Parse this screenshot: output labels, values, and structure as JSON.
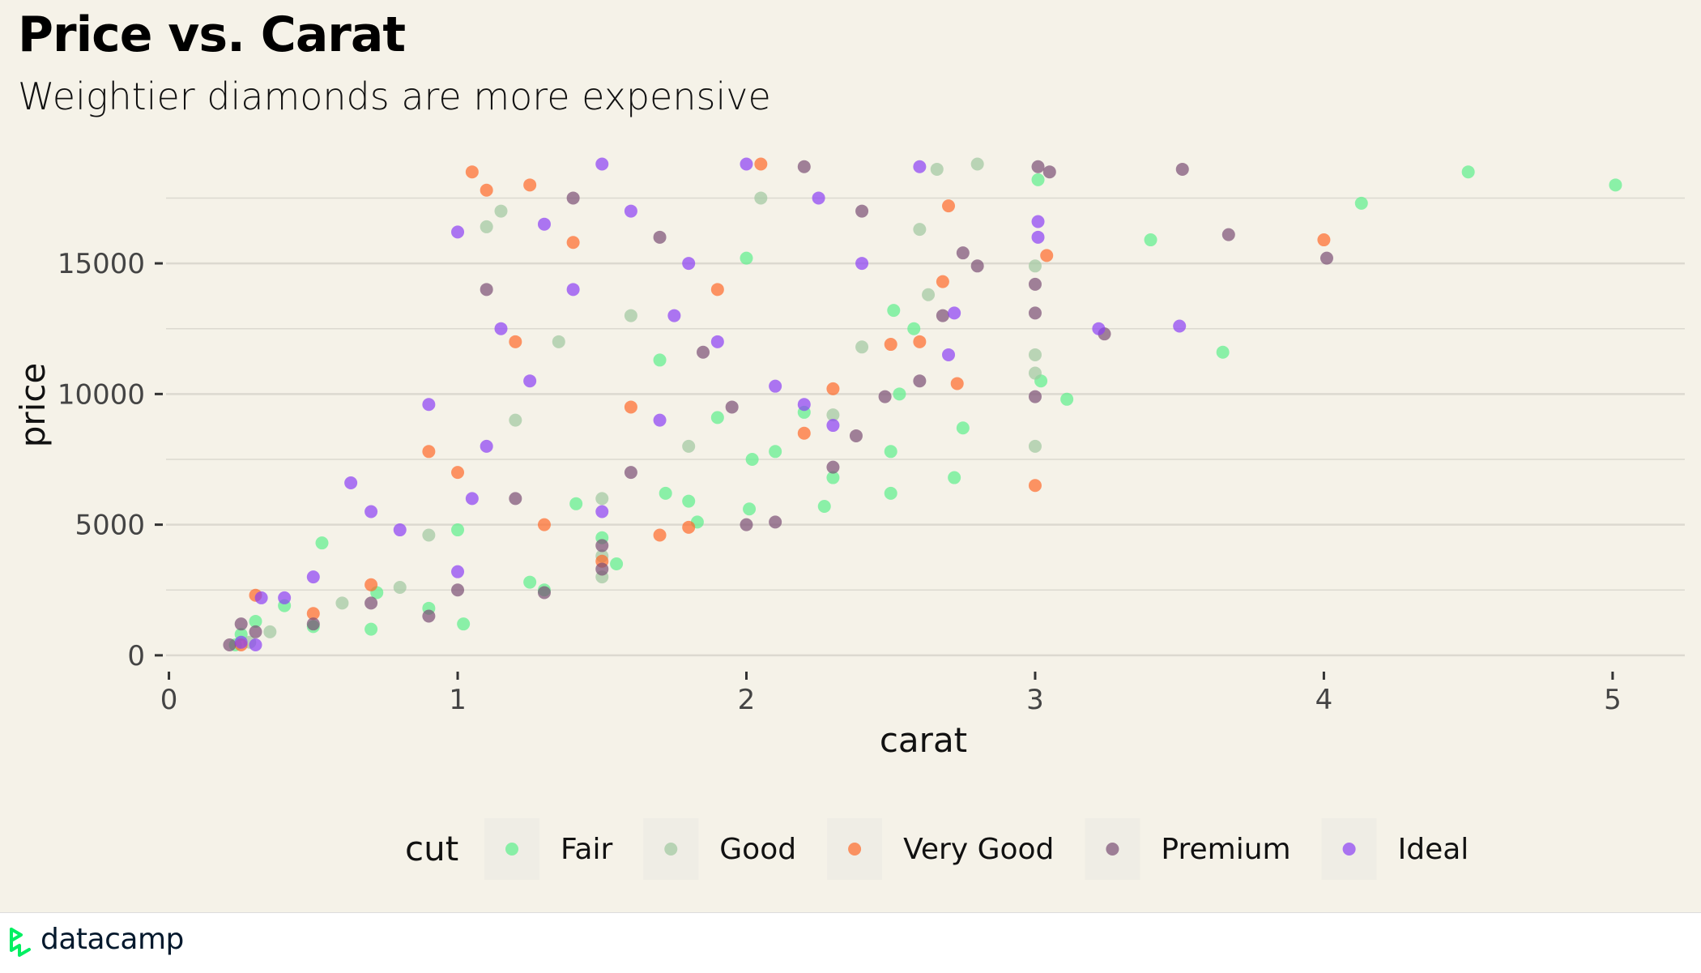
{
  "header": {
    "title": "Price vs. Carat",
    "subtitle": "Weightier diamonds are more expensive"
  },
  "footer": {
    "logo_text": "datacamp",
    "logo_icon": "datacamp-logo-icon"
  },
  "colors": {
    "background": "#f5f2e8",
    "grid": "#dcd9d0",
    "Fair": "#5cf08c",
    "Good": "#a0c8a0",
    "Very Good": "#ff6a2a",
    "Premium": "#7a4f75",
    "Ideal": "#8b3ff5",
    "logo": "#03ef62"
  },
  "chart_data": {
    "type": "scatter",
    "title": "Price vs. Carat",
    "subtitle": "Weightier diamonds are more expensive",
    "xlabel": "carat",
    "ylabel": "price",
    "xlim": [
      -0.01,
      5.25
    ],
    "ylim": [
      -500,
      19250
    ],
    "xticks": [
      0,
      1,
      2,
      3,
      4,
      5
    ],
    "yticks": [
      0,
      5000,
      10000,
      15000
    ],
    "grid": true,
    "legend": {
      "title": "cut",
      "position": "bottom",
      "entries": [
        "Fair",
        "Good",
        "Very Good",
        "Premium",
        "Ideal"
      ]
    },
    "series": [
      {
        "name": "Fair",
        "points": [
          [
            5.01,
            18000
          ],
          [
            4.5,
            18500
          ],
          [
            4.13,
            17300
          ],
          [
            3.4,
            15900
          ],
          [
            3.65,
            11600
          ],
          [
            3.11,
            9800
          ],
          [
            3.01,
            18200
          ],
          [
            3.02,
            10500
          ],
          [
            2.5,
            6200
          ],
          [
            2.72,
            6800
          ],
          [
            2.75,
            8700
          ],
          [
            2.58,
            12500
          ],
          [
            2.53,
            10000
          ],
          [
            2.51,
            13200
          ],
          [
            2.5,
            7800
          ],
          [
            2.27,
            5700
          ],
          [
            2.3,
            6800
          ],
          [
            2.1,
            7800
          ],
          [
            2.02,
            7500
          ],
          [
            2.01,
            5600
          ],
          [
            2.0,
            15200
          ],
          [
            1.83,
            5100
          ],
          [
            1.8,
            5900
          ],
          [
            1.72,
            6200
          ],
          [
            1.55,
            3500
          ],
          [
            1.5,
            4500
          ],
          [
            1.41,
            5800
          ],
          [
            1.3,
            2500
          ],
          [
            1.25,
            2800
          ],
          [
            1.0,
            4800
          ],
          [
            1.02,
            1200
          ],
          [
            0.9,
            1800
          ],
          [
            0.72,
            2400
          ],
          [
            0.7,
            1000
          ],
          [
            0.53,
            4300
          ],
          [
            0.5,
            1100
          ],
          [
            0.4,
            1900
          ],
          [
            0.3,
            1300
          ],
          [
            0.25,
            800
          ],
          [
            0.23,
            400
          ],
          [
            1.7,
            11300
          ],
          [
            1.9,
            9100
          ],
          [
            2.2,
            9300
          ]
        ]
      },
      {
        "name": "Good",
        "points": [
          [
            2.8,
            18800
          ],
          [
            2.66,
            18600
          ],
          [
            3.0,
            11500
          ],
          [
            3.0,
            10800
          ],
          [
            3.0,
            14900
          ],
          [
            3.0,
            8000
          ],
          [
            2.63,
            13800
          ],
          [
            2.6,
            16300
          ],
          [
            2.3,
            9200
          ],
          [
            2.4,
            11800
          ],
          [
            1.5,
            3000
          ],
          [
            1.5,
            3800
          ],
          [
            1.5,
            6000
          ],
          [
            1.1,
            16400
          ],
          [
            1.15,
            17000
          ],
          [
            0.9,
            4600
          ],
          [
            0.8,
            2600
          ],
          [
            0.6,
            2000
          ],
          [
            0.35,
            900
          ],
          [
            0.28,
            500
          ],
          [
            1.2,
            9000
          ],
          [
            1.35,
            12000
          ],
          [
            1.8,
            8000
          ],
          [
            2.05,
            17500
          ],
          [
            1.6,
            13000
          ]
        ]
      },
      {
        "name": "Very Good",
        "points": [
          [
            4.0,
            15900
          ],
          [
            3.04,
            15300
          ],
          [
            3.0,
            6500
          ],
          [
            2.7,
            17200
          ],
          [
            2.68,
            14300
          ],
          [
            2.73,
            10400
          ],
          [
            2.5,
            11900
          ],
          [
            2.6,
            12000
          ],
          [
            2.3,
            10200
          ],
          [
            2.2,
            8500
          ],
          [
            1.8,
            4900
          ],
          [
            1.7,
            4600
          ],
          [
            1.5,
            3600
          ],
          [
            1.3,
            5000
          ],
          [
            1.05,
            18500
          ],
          [
            1.1,
            17800
          ],
          [
            1.0,
            7000
          ],
          [
            0.9,
            7800
          ],
          [
            0.7,
            2700
          ],
          [
            0.5,
            1600
          ],
          [
            0.3,
            2300
          ],
          [
            0.25,
            400
          ],
          [
            1.2,
            12000
          ],
          [
            1.4,
            15800
          ],
          [
            1.9,
            14000
          ],
          [
            2.05,
            18800
          ],
          [
            1.6,
            9500
          ],
          [
            1.25,
            18000
          ]
        ]
      },
      {
        "name": "Premium",
        "points": [
          [
            4.01,
            15200
          ],
          [
            3.67,
            16100
          ],
          [
            3.51,
            18600
          ],
          [
            3.24,
            12300
          ],
          [
            3.05,
            18500
          ],
          [
            3.01,
            18700
          ],
          [
            3.0,
            14200
          ],
          [
            3.0,
            13100
          ],
          [
            3.0,
            9900
          ],
          [
            2.8,
            14900
          ],
          [
            2.75,
            15400
          ],
          [
            2.68,
            13000
          ],
          [
            2.6,
            10500
          ],
          [
            2.48,
            9900
          ],
          [
            2.38,
            8400
          ],
          [
            2.3,
            7200
          ],
          [
            2.0,
            5000
          ],
          [
            2.1,
            5100
          ],
          [
            1.85,
            11600
          ],
          [
            1.5,
            3300
          ],
          [
            1.5,
            4200
          ],
          [
            1.3,
            2400
          ],
          [
            1.2,
            6000
          ],
          [
            1.0,
            2500
          ],
          [
            0.9,
            1500
          ],
          [
            0.7,
            2000
          ],
          [
            0.5,
            1200
          ],
          [
            0.3,
            900
          ],
          [
            0.21,
            400
          ],
          [
            0.25,
            1200
          ],
          [
            1.1,
            14000
          ],
          [
            1.4,
            17500
          ],
          [
            1.7,
            16000
          ],
          [
            2.2,
            18700
          ],
          [
            2.4,
            17000
          ],
          [
            1.95,
            9500
          ],
          [
            1.6,
            7000
          ]
        ]
      },
      {
        "name": "Ideal",
        "points": [
          [
            3.5,
            12600
          ],
          [
            3.22,
            12500
          ],
          [
            3.01,
            16000
          ],
          [
            3.01,
            16600
          ],
          [
            2.72,
            13100
          ],
          [
            2.7,
            11500
          ],
          [
            2.6,
            18700
          ],
          [
            2.3,
            8800
          ],
          [
            2.2,
            9600
          ],
          [
            2.1,
            10300
          ],
          [
            2.0,
            18800
          ],
          [
            1.9,
            12000
          ],
          [
            1.7,
            9000
          ],
          [
            1.8,
            15000
          ],
          [
            1.5,
            18800
          ],
          [
            1.5,
            5500
          ],
          [
            1.3,
            16500
          ],
          [
            1.25,
            10500
          ],
          [
            1.1,
            8000
          ],
          [
            1.0,
            16200
          ],
          [
            1.0,
            3200
          ],
          [
            0.9,
            9600
          ],
          [
            0.8,
            4800
          ],
          [
            0.7,
            5500
          ],
          [
            0.63,
            6600
          ],
          [
            0.5,
            3000
          ],
          [
            0.4,
            2200
          ],
          [
            0.32,
            2200
          ],
          [
            0.3,
            400
          ],
          [
            0.25,
            500
          ],
          [
            1.4,
            14000
          ],
          [
            1.6,
            17000
          ],
          [
            1.15,
            12500
          ],
          [
            2.4,
            15000
          ],
          [
            2.25,
            17500
          ],
          [
            1.75,
            13000
          ],
          [
            1.05,
            6000
          ]
        ]
      }
    ]
  }
}
